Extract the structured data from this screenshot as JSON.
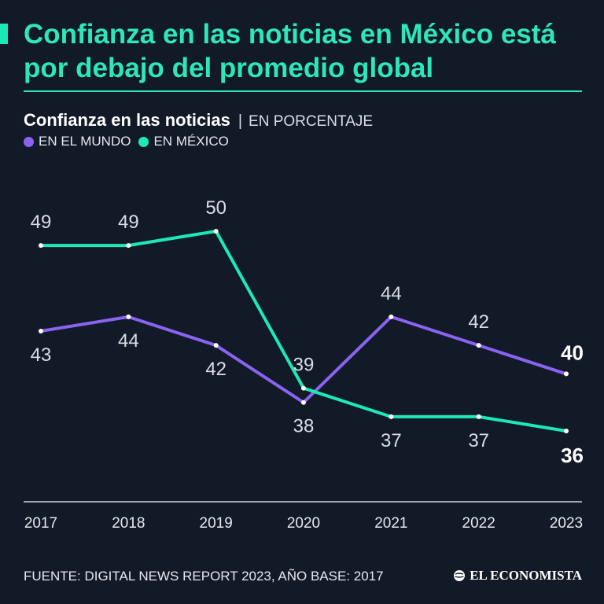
{
  "header": {
    "title": "Confianza en las noticias en México está por debajo del promedio global"
  },
  "subtitle": {
    "main": "Confianza en las noticias",
    "separator": "|",
    "unit": "EN PORCENTAJE"
  },
  "legend": [
    {
      "label": "EN EL MUNDO",
      "color": "#8a63f2"
    },
    {
      "label": "EN MÉXICO",
      "color": "#1de9b6"
    }
  ],
  "chart_data": {
    "type": "line",
    "title": "Confianza en las noticias",
    "ylabel": "EN PORCENTAJE",
    "xlabel": "",
    "x": [
      "2017",
      "2018",
      "2019",
      "2020",
      "2021",
      "2022",
      "2023"
    ],
    "ylim": [
      34,
      52
    ],
    "grid": false,
    "series": [
      {
        "name": "EN EL MUNDO",
        "color": "#8a63f2",
        "values": [
          43,
          44,
          42,
          38,
          44,
          42,
          40
        ]
      },
      {
        "name": "EN MÉXICO",
        "color": "#1de9b6",
        "values": [
          49,
          49,
          50,
          39,
          37,
          37,
          36
        ]
      }
    ]
  },
  "footer": {
    "source": "FUENTE: DIGITAL NEWS REPORT 2023, AÑO BASE: 2017",
    "brand": "EL ECONOMISTA"
  },
  "colors": {
    "background": "#121a28",
    "accent": "#2ee6b7",
    "label": "#d9dde5",
    "axis": "#cfd3da"
  }
}
